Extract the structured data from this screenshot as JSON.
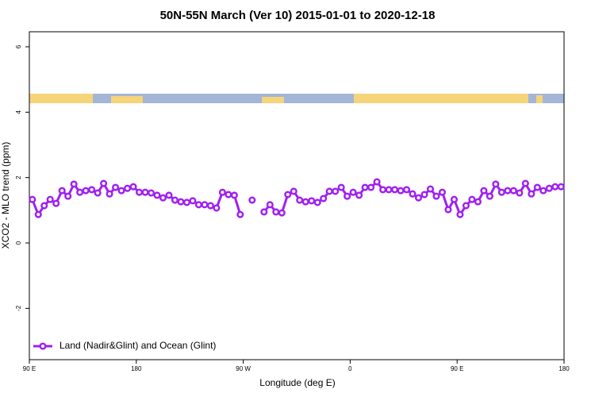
{
  "chart_data": {
    "type": "line",
    "title": "50N-55N March (Ver 10)   2015-01-01 to 2020-12-18",
    "x_label": "Longitude (deg E)",
    "y_label": "XCO2 - MLO trend (ppm)",
    "xlim": [
      90,
      540
    ],
    "xticks": [
      {
        "value": 90,
        "label": "90 E"
      },
      {
        "value": 180,
        "label": "180"
      },
      {
        "value": 270,
        "label": "90 W"
      },
      {
        "value": 360,
        "label": "0"
      },
      {
        "value": 450,
        "label": "90 E"
      },
      {
        "value": 540,
        "label": "180"
      }
    ],
    "ylim": [
      -3.57,
      6.46
    ],
    "yticks": [
      -2,
      0,
      2,
      4,
      6
    ],
    "legend": "bottom-left",
    "x": [
      92.5,
      97.5,
      102.5,
      107.5,
      112.5,
      117.5,
      122.5,
      127.5,
      132.5,
      137.5,
      142.5,
      147.5,
      152.5,
      157.5,
      162.5,
      167.5,
      172.5,
      177.5,
      182.5,
      187.5,
      192.5,
      197.5,
      202.5,
      207.5,
      212.5,
      217.5,
      222.5,
      227.5,
      232.5,
      237.5,
      242.5,
      247.5,
      252.5,
      257.5,
      262.5,
      267.5,
      272.5,
      277.5,
      282.5,
      287.5,
      292.5,
      297.5,
      302.5,
      307.5,
      312.5,
      317.5,
      322.5,
      327.5,
      332.5,
      337.5,
      342.5,
      347.5,
      352.5,
      357.5,
      362.5,
      367.5,
      372.5,
      377.5,
      382.5,
      387.5,
      392.5,
      397.5,
      402.5,
      407.5,
      412.5,
      417.5,
      422.5,
      427.5,
      432.5,
      437.5,
      442.5,
      447.5,
      452.5,
      457.5,
      462.5,
      467.5,
      472.5,
      477.5,
      482.5,
      487.5,
      492.5,
      497.5,
      502.5,
      507.5,
      512.5,
      517.5,
      522.5,
      527.5,
      532.5,
      537.5
    ],
    "series": [
      {
        "name": "Land (Nadir&Glint) and Ocean (Glint)",
        "color": "#a020f0",
        "values": [
          1.33,
          0.87,
          1.14,
          1.33,
          1.21,
          1.6,
          1.43,
          1.8,
          1.55,
          1.6,
          1.63,
          1.53,
          1.82,
          1.5,
          1.7,
          1.6,
          1.67,
          1.72,
          1.55,
          1.55,
          1.53,
          1.46,
          1.38,
          1.46,
          1.31,
          1.26,
          1.24,
          1.29,
          1.17,
          1.17,
          1.14,
          1.07,
          1.55,
          1.48,
          1.46,
          0.87,
          null,
          1.31,
          null,
          0.95,
          1.17,
          0.95,
          0.92,
          1.48,
          1.58,
          1.31,
          1.26,
          1.29,
          1.24,
          1.36,
          1.58,
          1.58,
          1.7,
          1.43,
          1.55,
          1.46,
          1.7,
          1.7,
          1.87,
          1.63,
          1.63,
          1.63,
          1.6,
          1.63,
          1.5,
          1.38,
          1.48,
          1.65,
          1.43,
          1.55,
          1.02,
          1.33,
          0.87,
          1.14,
          1.33,
          1.26,
          1.6,
          1.43,
          1.8,
          1.55,
          1.6,
          1.6,
          1.53,
          1.82,
          1.5,
          1.7,
          1.6,
          1.67,
          1.72,
          1.72
        ]
      }
    ]
  }
}
